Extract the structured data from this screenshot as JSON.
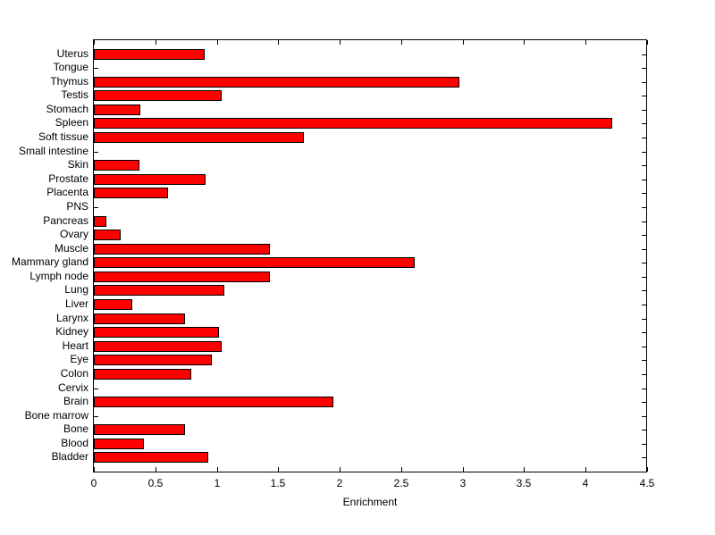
{
  "figure": {
    "background_color": "#ffffff",
    "text_color": "#000000"
  },
  "chart_data": {
    "type": "bar",
    "orientation": "horizontal",
    "title": "",
    "xlabel": "Enrichment",
    "ylabel": "",
    "xlim": [
      0,
      4.5
    ],
    "xtick_labels": [
      "0",
      "0.5",
      "1",
      "1.5",
      "2",
      "2.5",
      "3",
      "3.5",
      "4",
      "4.5"
    ],
    "xtick_values": [
      0,
      0.5,
      1,
      1.5,
      2,
      2.5,
      3,
      3.5,
      4,
      4.5
    ],
    "grid": false,
    "legend": null,
    "bar_fill_color": "#ff0000",
    "bar_edge_color": "#000000",
    "categories_top_to_bottom": [
      "Uterus",
      "Tongue",
      "Thymus",
      "Testis",
      "Stomach",
      "Spleen",
      "Soft tissue",
      "Small intestine",
      "Skin",
      "Prostate",
      "Placenta",
      "PNS",
      "Pancreas",
      "Ovary",
      "Muscle",
      "Mammary gland",
      "Lymph node",
      "Lung",
      "Liver",
      "Larynx",
      "Kidney",
      "Heart",
      "Eye",
      "Colon",
      "Cervix",
      "Brain",
      "Bone marrow",
      "Bone",
      "Blood",
      "Bladder"
    ],
    "values": [
      0.9,
      0,
      2.97,
      1.04,
      0.38,
      4.22,
      1.71,
      0,
      0.37,
      0.91,
      0.6,
      0,
      0.1,
      0.22,
      1.43,
      2.61,
      1.43,
      1.06,
      0.31,
      0.74,
      1.02,
      1.04,
      0.96,
      0.79,
      0,
      1.95,
      0,
      0.74,
      0.41,
      0.93
    ]
  }
}
